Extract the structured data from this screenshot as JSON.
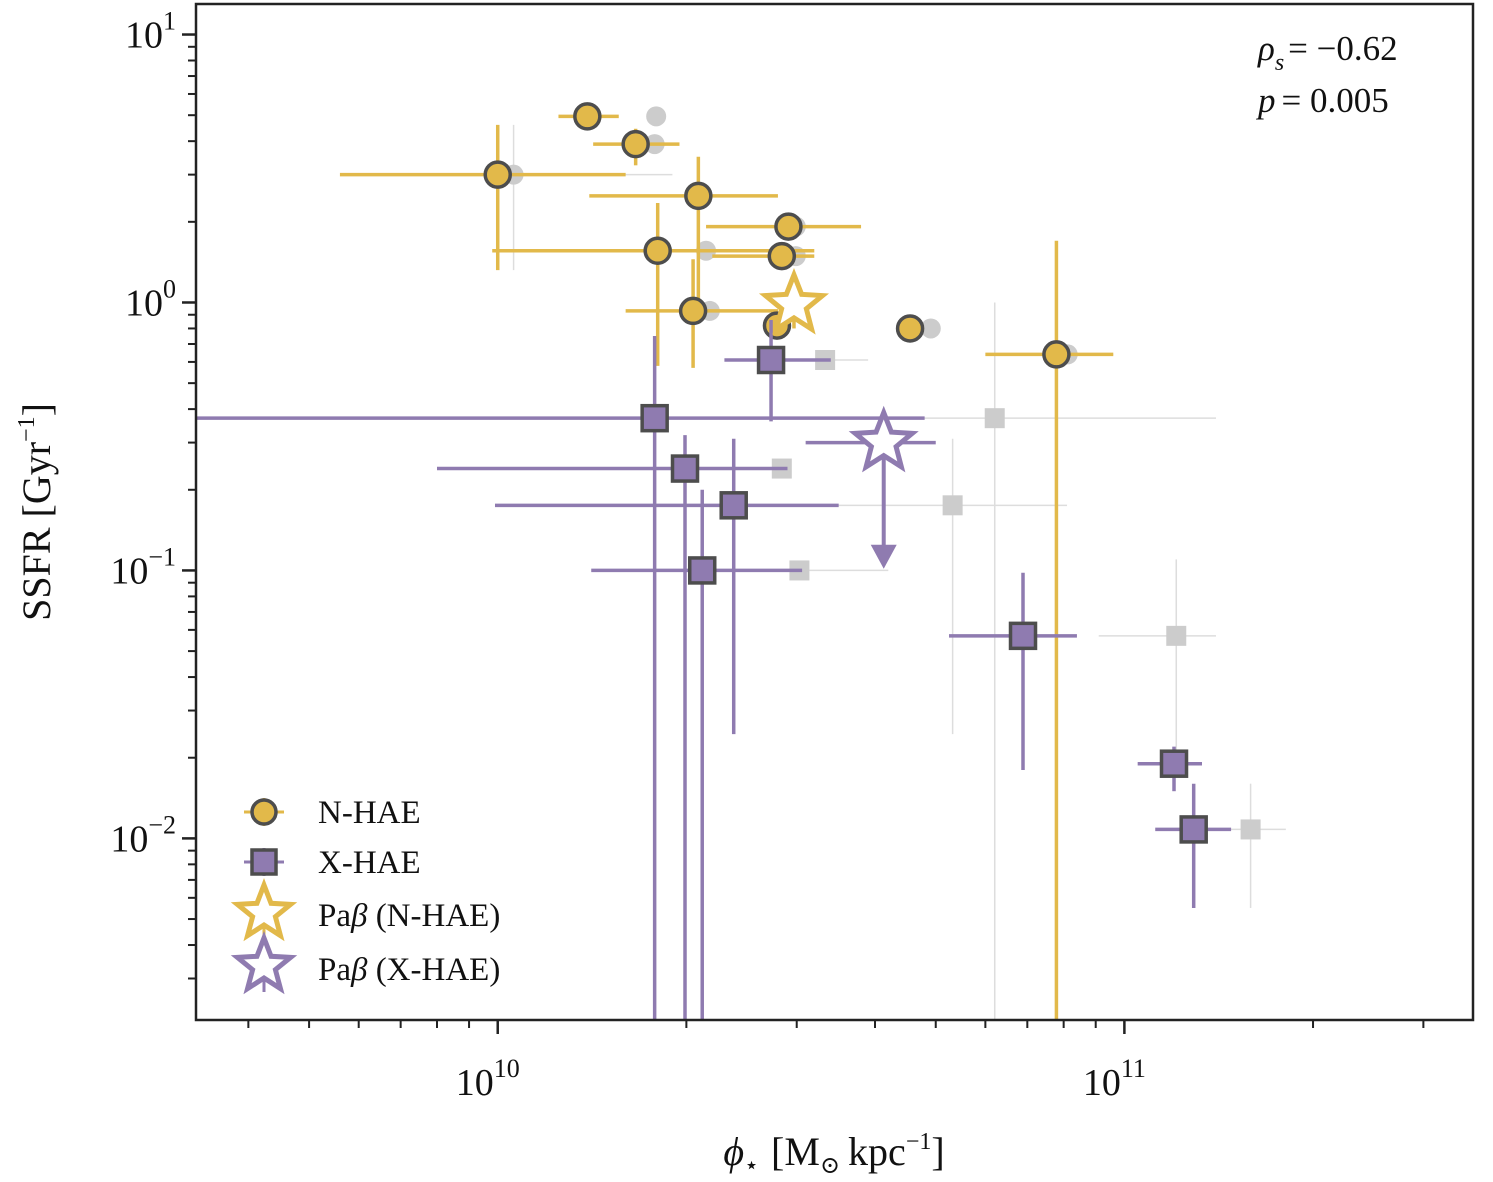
{
  "chart_data": {
    "type": "scatter",
    "xscale": "log",
    "yscale": "log",
    "xlim": [
      3300000000.0,
      360000000000.0
    ],
    "ylim": [
      0.0021,
      13
    ],
    "xlabel": "ϕ⋆ [M⊙ kpc⁻¹]",
    "ylabel": "SSFR [Gyr⁻¹]",
    "xticks": [
      {
        "value": 10000000000.0,
        "base": "10",
        "exp": "10"
      },
      {
        "value": 100000000000.0,
        "base": "10",
        "exp": "11"
      }
    ],
    "yticks": [
      {
        "value": 0.01,
        "base": "10",
        "exp": "−2"
      },
      {
        "value": 0.1,
        "base": "10",
        "exp": "−1"
      },
      {
        "value": 1,
        "base": "10",
        "exp": "0"
      },
      {
        "value": 10,
        "base": "10",
        "exp": "1"
      }
    ],
    "annotation": {
      "rho_label": "ρ",
      "rho_sub": "s",
      "rho_value": "= −0.62",
      "p_label": "p",
      "p_value": "= 0.005"
    },
    "legend": {
      "position": "lower-left",
      "entries": [
        {
          "key": "nhae",
          "label": "N-HAE",
          "marker": "circle",
          "color": "#e2b94a"
        },
        {
          "key": "xhae",
          "label": "X-HAE",
          "marker": "square",
          "color": "#8f7bb0"
        },
        {
          "key": "pab_n",
          "label_prefix": "Pa",
          "label_greek": "β",
          "label_suffix": " (N-HAE)",
          "marker": "star",
          "color": "#e2b94a"
        },
        {
          "key": "pab_x",
          "label_prefix": "Pa",
          "label_greek": "β",
          "label_suffix": " (X-HAE)",
          "marker": "star",
          "color": "#8f7bb0"
        }
      ]
    },
    "colors": {
      "nhae": "#e2b94a",
      "xhae": "#8f7bb0",
      "edge": "#4d4d4d",
      "ghost": "#cccccc",
      "ghost_line": "#dddddd",
      "axis": "#222222"
    },
    "series": [
      {
        "name": "N-HAE",
        "marker": "circle",
        "points": [
          {
            "x": 13900000000.0,
            "y": 4.95,
            "xerr": [
              12500000000.0,
              15600000000.0
            ],
            "ghost_x": 17900000000.0,
            "ghost_y": 4.95
          },
          {
            "x": 16600000000.0,
            "y": 3.9,
            "xerr": [
              14200000000.0,
              19500000000.0
            ],
            "yerr": [
              3.25,
              4.45
            ],
            "ghost_x": 17800000000.0,
            "ghost_y": 3.9
          },
          {
            "x": 10000000000.0,
            "y": 3.0,
            "xerr": [
              5600000000.0,
              16000000000.0
            ],
            "yerr": [
              1.32,
              4.6
            ],
            "ghost_x": 10600000000.0,
            "ghost_y": 3.0,
            "ghost_xerr": [
              6800000000.0,
              19000000000.0
            ],
            "ghost_yerr": [
              1.32,
              4.6
            ]
          },
          {
            "x": 20900000000.0,
            "y": 2.5,
            "xerr": [
              14000000000.0,
              28000000000.0
            ],
            "yerr": [
              1.0,
              3.5
            ]
          },
          {
            "x": 29100000000.0,
            "y": 1.92,
            "xerr": [
              21500000000.0,
              38000000000.0
            ],
            "ghost_x": 29900000000.0,
            "ghost_y": 1.92
          },
          {
            "x": 18000000000.0,
            "y": 1.56,
            "xerr": [
              9800000000.0,
              32000000000.0
            ],
            "yerr": [
              0.58,
              2.35
            ],
            "ghost_x": 21500000000.0,
            "ghost_y": 1.56
          },
          {
            "x": 28400000000.0,
            "y": 1.49,
            "xerr": [
              22000000000.0,
              32000000000.0
            ],
            "ghost_x": 29900000000.0,
            "ghost_y": 1.49
          },
          {
            "x": 20500000000.0,
            "y": 0.93,
            "xerr": [
              16000000000.0,
              28000000000.0
            ],
            "yerr": [
              0.57,
              1.45
            ],
            "ghost_x": 21800000000.0,
            "ghost_y": 0.93
          },
          {
            "x": 27900000000.0,
            "y": 0.82,
            "ghost_x": 27900000000.0,
            "ghost_y": 0.82
          },
          {
            "x": 45500000000.0,
            "y": 0.8,
            "ghost_x": 49100000000.0,
            "ghost_y": 0.8
          },
          {
            "x": 77900000000.0,
            "y": 0.64,
            "xerr": [
              60000000000.0,
              96000000000.0
            ],
            "yerr": [
              0.0021,
              1.7
            ],
            "ghost_x": 81200000000.0,
            "ghost_y": 0.64,
            "ghost_xerr": [
              64000000000.0,
              96000000000.0
            ]
          }
        ]
      },
      {
        "name": "X-HAE",
        "marker": "square",
        "points": [
          {
            "x": 27300000000.0,
            "y": 0.61,
            "xerr": [
              23000000000.0,
              34000000000.0
            ],
            "yerr": [
              0.36,
              0.86
            ],
            "ghost_x": 33300000000.0,
            "ghost_y": 0.61,
            "ghost_xerr": [
              28000000000.0,
              39000000000.0
            ]
          },
          {
            "x": 17800000000.0,
            "y": 0.37,
            "xerr": [
              1000000000.0,
              48000000000.0
            ],
            "yerr": [
              0.0021,
              0.75
            ],
            "ghost_x": 62100000000.0,
            "ghost_y": 0.37,
            "ghost_xerr": [
              28000000000.0,
              140000000000.0
            ],
            "ghost_yerr": [
              0.0021,
              1.0
            ]
          },
          {
            "x": 19900000000.0,
            "y": 0.24,
            "xerr": [
              8000000000.0,
              29000000000.0
            ],
            "yerr": [
              0.0021,
              0.32
            ],
            "ghost_x": 28400000000.0,
            "ghost_y": 0.24
          },
          {
            "x": 23800000000.0,
            "y": 0.175,
            "xerr": [
              9900000000.0,
              35000000000.0
            ],
            "yerr": [
              0.0245,
              0.31
            ],
            "ghost_x": 53200000000.0,
            "ghost_y": 0.175,
            "ghost_xerr": [
              33000000000.0,
              81000000000.0
            ],
            "ghost_yerr": [
              0.0245,
              0.31
            ]
          },
          {
            "x": 21200000000.0,
            "y": 0.1,
            "xerr": [
              14100000000.0,
              30600000000.0
            ],
            "yerr": [
              0.0021,
              0.2
            ],
            "ghost_x": 30300000000.0,
            "ghost_y": 0.1,
            "ghost_xerr": [
              22000000000.0,
              42000000000.0
            ]
          },
          {
            "x": 68900000000.0,
            "y": 0.057,
            "xerr": [
              52500000000.0,
              84000000000.0
            ],
            "yerr": [
              0.018,
              0.098
            ],
            "ghost_x": 121000000000.0,
            "ghost_y": 0.057,
            "ghost_xerr": [
              91000000000.0,
              140000000000.0
            ],
            "ghost_yerr": [
              0.018,
              0.11
            ]
          },
          {
            "x": 120000000000.0,
            "y": 0.019,
            "xerr": [
              105000000000.0,
              133000000000.0
            ],
            "yerr": [
              0.015,
              0.022
            ]
          },
          {
            "x": 129000000000.0,
            "y": 0.0108,
            "xerr": [
              112000000000.0,
              148000000000.0
            ],
            "yerr": [
              0.0055,
              0.016
            ],
            "ghost_x": 159000000000.0,
            "ghost_y": 0.0108,
            "ghost_xerr": [
              138000000000.0,
              181000000000.0
            ],
            "ghost_yerr": [
              0.0055,
              0.016
            ]
          }
        ]
      },
      {
        "name": "Paβ (N-HAE)",
        "marker": "star",
        "points": [
          {
            "x": 29700000000.0,
            "y": 0.98,
            "yerr": [
              0.8,
              1.2
            ]
          }
        ]
      },
      {
        "name": "Paβ (X-HAE)",
        "marker": "star",
        "points": [
          {
            "x": 41300000000.0,
            "y": 0.3,
            "xerr": [
              31000000000.0,
              50000000000.0
            ],
            "upper_limit_to": 0.105
          }
        ]
      }
    ]
  }
}
